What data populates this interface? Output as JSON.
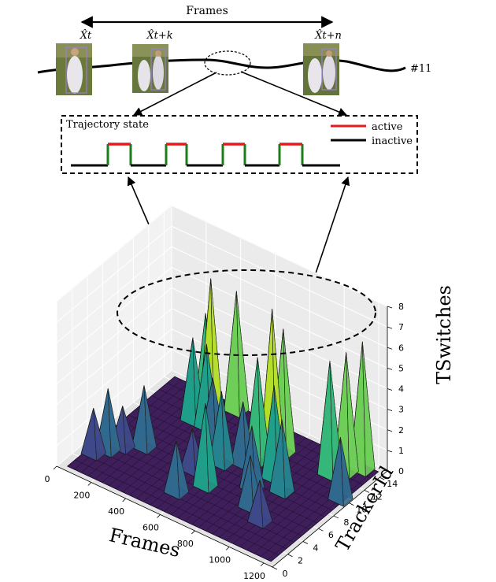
{
  "header": {
    "frames_label": "Frames",
    "thumb_labels": [
      "X̂t",
      "X̂t+k",
      "X̂t+n"
    ],
    "track_id": "#11"
  },
  "state_panel": {
    "title": "Trajectory state",
    "legend": [
      {
        "label": "active",
        "color": "#e41a1c"
      },
      {
        "label": "inactive",
        "color": "#000000"
      }
    ],
    "edge_color": "#1a7f1a"
  },
  "chart_data": {
    "type": "surface3d",
    "xlabel": "Frames",
    "ylabel": "TrackerId",
    "zlabel": "TSwitches",
    "x_ticks": [
      "0",
      "200",
      "400",
      "600",
      "800",
      "1000",
      "1200"
    ],
    "y_ticks": [
      "0",
      "2",
      "4",
      "6",
      "8",
      "10",
      "12",
      "14"
    ],
    "z_ticks": [
      "0",
      "1",
      "2",
      "3",
      "4",
      "5",
      "6",
      "7",
      "8"
    ],
    "xlim": [
      0,
      1250
    ],
    "ylim": [
      0,
      15
    ],
    "zlim": [
      0,
      8
    ],
    "colormap": "viridis",
    "peaks": [
      {
        "frame": 80,
        "tracker": 3,
        "value": 2.2
      },
      {
        "frame": 120,
        "tracker": 4,
        "value": 3.0
      },
      {
        "frame": 160,
        "tracker": 5,
        "value": 2.0
      },
      {
        "frame": 240,
        "tracker": 6,
        "value": 3.0
      },
      {
        "frame": 300,
        "tracker": 11,
        "value": 4.0
      },
      {
        "frame": 330,
        "tracker": 12,
        "value": 5.0
      },
      {
        "frame": 360,
        "tracker": 12,
        "value": 6.8
      },
      {
        "frame": 380,
        "tracker": 11,
        "value": 4.0
      },
      {
        "frame": 420,
        "tracker": 14,
        "value": 5.8
      },
      {
        "frame": 460,
        "tracker": 10,
        "value": 3.0
      },
      {
        "frame": 520,
        "tracker": 6,
        "value": 2.0
      },
      {
        "frame": 560,
        "tracker": 3,
        "value": 2.5
      },
      {
        "frame": 600,
        "tracker": 8,
        "value": 3.5
      },
      {
        "frame": 640,
        "tracker": 5,
        "value": 4.0
      },
      {
        "frame": 680,
        "tracker": 9,
        "value": 3.0
      },
      {
        "frame": 720,
        "tracker": 10,
        "value": 5.0
      },
      {
        "frame": 760,
        "tracker": 11,
        "value": 7.2
      },
      {
        "frame": 780,
        "tracker": 12,
        "value": 6.0
      },
      {
        "frame": 820,
        "tracker": 7,
        "value": 3.0
      },
      {
        "frame": 860,
        "tracker": 9,
        "value": 4.5
      },
      {
        "frame": 900,
        "tracker": 5,
        "value": 2.5
      },
      {
        "frame": 950,
        "tracker": 8,
        "value": 3.5
      },
      {
        "frame": 1000,
        "tracker": 4,
        "value": 2.0
      },
      {
        "frame": 1050,
        "tracker": 12,
        "value": 5.5
      },
      {
        "frame": 1100,
        "tracker": 13,
        "value": 5.8
      },
      {
        "frame": 1150,
        "tracker": 14,
        "value": 6.2
      },
      {
        "frame": 1200,
        "tracker": 10,
        "value": 3.0
      }
    ]
  }
}
